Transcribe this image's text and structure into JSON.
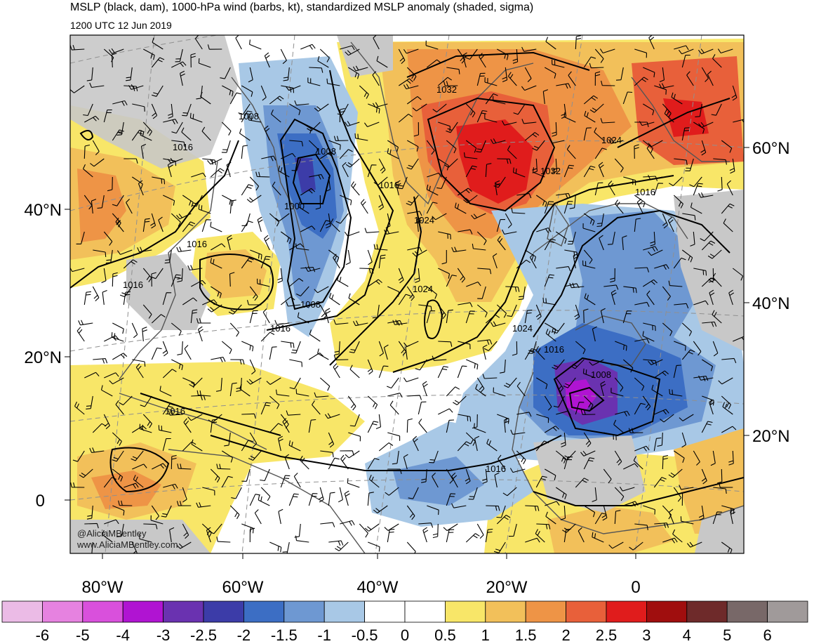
{
  "header": {
    "title": "MSLP (black, dam), 1000-hPa wind (barbs, kt), standardized MSLP anomaly (shaded, sigma)",
    "valid_time": "1200 UTC 12 Jun 2019"
  },
  "map": {
    "lon_labels": [
      "80°W",
      "60°W",
      "40°W",
      "20°W",
      "0"
    ],
    "lat_labels_left": [
      "40°N",
      "20°N",
      "0"
    ],
    "lat_labels_right": [
      "60°N",
      "40°N",
      "20°N"
    ],
    "isobar_labels": [
      "1032",
      "1032",
      "1024",
      "1024",
      "1024",
      "1024",
      "1016",
      "1016",
      "1016",
      "1016",
      "1016",
      "1016",
      "1016",
      "1016",
      "1008",
      "1008",
      "1008",
      "1008",
      "1000"
    ]
  },
  "credits": {
    "handle": "@AliciaMBentley",
    "site": "www.AliciaMBentley.com"
  },
  "colorbar": {
    "ticks": [
      "-6",
      "-5",
      "-4",
      "-3",
      "-2.5",
      "-2",
      "-1.5",
      "-1",
      "-0.5",
      "0",
      "0.5",
      "1",
      "1.5",
      "2",
      "2.5",
      "3",
      "4",
      "5",
      "6"
    ],
    "colors": [
      "#ebbbe6",
      "#e682e0",
      "#d950dc",
      "#b014d2",
      "#6a32b0",
      "#3c3ca8",
      "#3c6ec4",
      "#6e98d2",
      "#a8c8e6",
      "#ffffff",
      "#ffffff",
      "#f8e668",
      "#f2c05a",
      "#ee9446",
      "#e8603a",
      "#e01c1c",
      "#a00e0e",
      "#6e2a2a",
      "#786868",
      "#a09a9a"
    ]
  },
  "colors": {
    "land_gray": "#c8c8c8",
    "coast": "#555555",
    "isobar": "#000000",
    "graticule": "#909090"
  }
}
